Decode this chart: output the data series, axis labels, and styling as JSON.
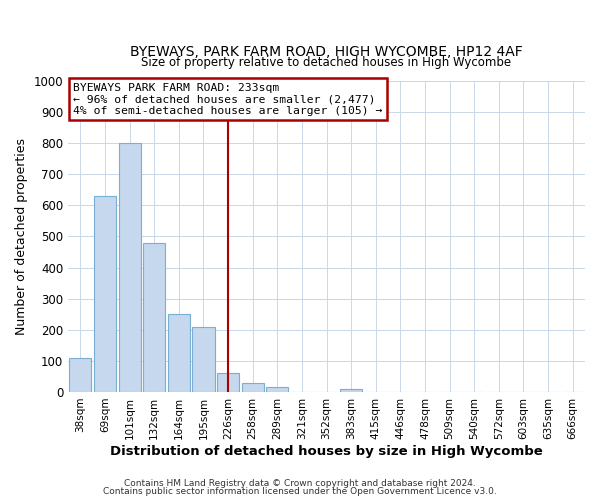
{
  "title": "BYEWAYS, PARK FARM ROAD, HIGH WYCOMBE, HP12 4AF",
  "subtitle": "Size of property relative to detached houses in High Wycombe",
  "xlabel": "Distribution of detached houses by size in High Wycombe",
  "ylabel": "Number of detached properties",
  "bar_labels": [
    "38sqm",
    "69sqm",
    "101sqm",
    "132sqm",
    "164sqm",
    "195sqm",
    "226sqm",
    "258sqm",
    "289sqm",
    "321sqm",
    "352sqm",
    "383sqm",
    "415sqm",
    "446sqm",
    "478sqm",
    "509sqm",
    "540sqm",
    "572sqm",
    "603sqm",
    "635sqm",
    "666sqm"
  ],
  "bar_values": [
    110,
    630,
    800,
    480,
    250,
    210,
    60,
    30,
    15,
    0,
    0,
    10,
    0,
    0,
    0,
    0,
    0,
    0,
    0,
    0,
    0
  ],
  "bar_color": "#c5d8ed",
  "bar_edge_color": "#7aafd4",
  "vline_x_index": 6,
  "vline_color": "#aa0000",
  "ylim": [
    0,
    1000
  ],
  "yticks": [
    0,
    100,
    200,
    300,
    400,
    500,
    600,
    700,
    800,
    900,
    1000
  ],
  "annotation_box_text_lines": [
    "BYEWAYS PARK FARM ROAD: 233sqm",
    "← 96% of detached houses are smaller (2,477)",
    "4% of semi-detached houses are larger (105) →"
  ],
  "annotation_box_color": "#aa0000",
  "footer_line1": "Contains HM Land Registry data © Crown copyright and database right 2024.",
  "footer_line2": "Contains public sector information licensed under the Open Government Licence v3.0.",
  "background_color": "#ffffff",
  "grid_color": "#c8d8e8"
}
